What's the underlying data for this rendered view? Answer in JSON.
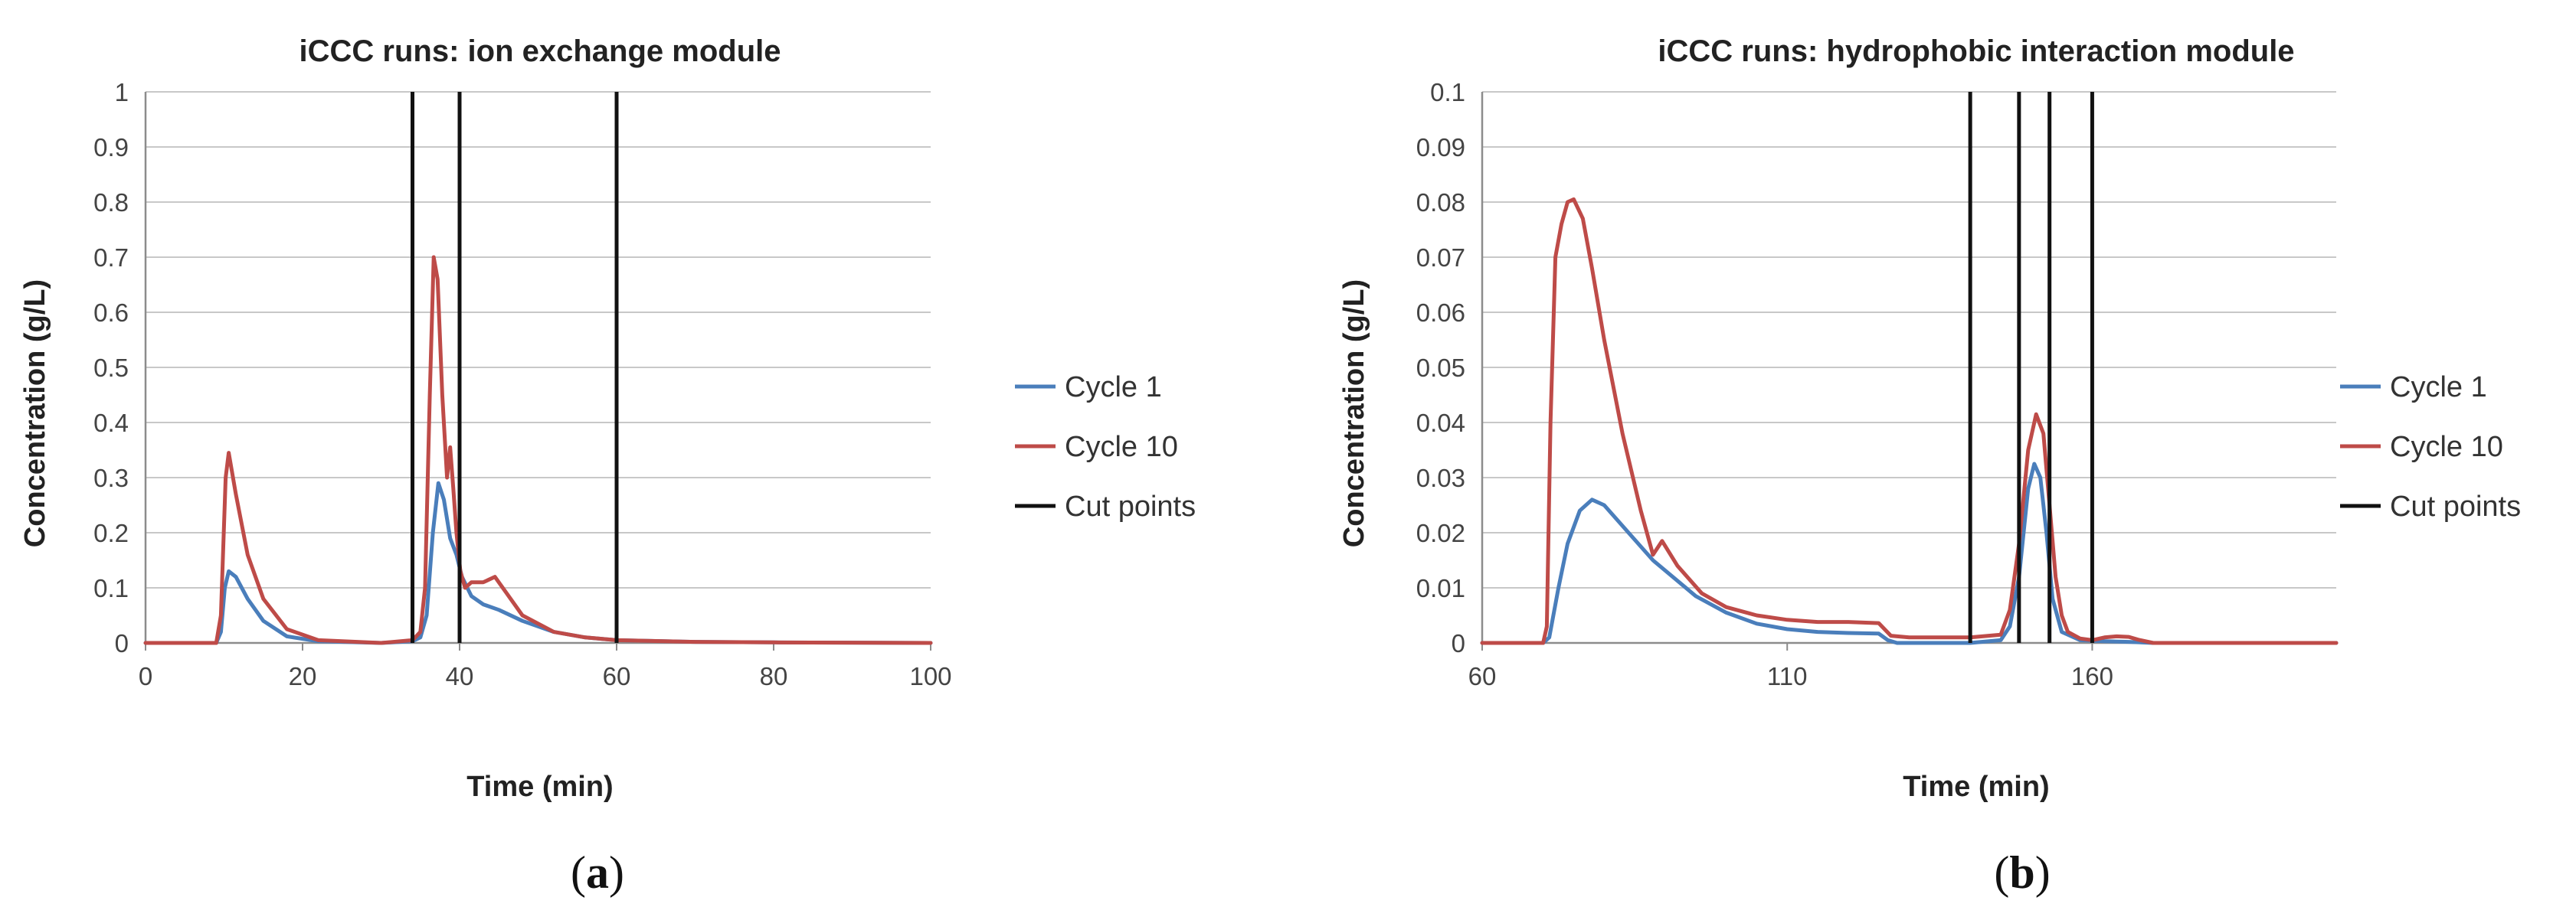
{
  "panel_labels": [
    {
      "open": "(",
      "letter": "a",
      "close": ")"
    },
    {
      "open": "(",
      "letter": "b",
      "close": ")"
    }
  ],
  "chart_data": [
    {
      "type": "line",
      "title": "iCCC runs: ion exchange module",
      "xlabel": "Time (min)",
      "ylabel": "Concentration (g/L)",
      "xlim": [
        0,
        100
      ],
      "ylim": [
        0,
        1
      ],
      "xticks": [
        0,
        20,
        40,
        60,
        80,
        100
      ],
      "xtick_labels": [
        "0",
        "20",
        "40",
        "60",
        "80",
        "100"
      ],
      "yticks": [
        0,
        0.1,
        0.2,
        0.3,
        0.4,
        0.5,
        0.6,
        0.7,
        0.8,
        0.9,
        1
      ],
      "ytick_labels": [
        "0",
        "0.1",
        "0.2",
        "0.3",
        "0.4",
        "0.5",
        "0.6",
        "0.7",
        "0.8",
        "0.9",
        "1"
      ],
      "grid": true,
      "legend_position": "right",
      "series": [
        {
          "name": "Cycle 1",
          "color": "#4a7ebb",
          "x": [
            0,
            9,
            9.6,
            10.1,
            10.6,
            11.5,
            13,
            15,
            18,
            22,
            30,
            34,
            35,
            35.8,
            36.6,
            37.3,
            38,
            38.8,
            39.6,
            40.3,
            41.5,
            43,
            45,
            48,
            52,
            56,
            60,
            70,
            80,
            100
          ],
          "y": [
            0,
            0,
            0.02,
            0.1,
            0.13,
            0.12,
            0.08,
            0.04,
            0.012,
            0.003,
            0,
            0.003,
            0.01,
            0.05,
            0.2,
            0.29,
            0.26,
            0.19,
            0.16,
            0.12,
            0.085,
            0.07,
            0.06,
            0.04,
            0.02,
            0.01,
            0.005,
            0.002,
            0.001,
            0
          ]
        },
        {
          "name": "Cycle 10",
          "color": "#be4b48",
          "x": [
            0,
            9,
            9.6,
            10.2,
            10.6,
            11.5,
            13,
            15,
            18,
            22,
            30,
            34,
            35,
            35.6,
            36.2,
            36.7,
            37.2,
            37.8,
            38.4,
            38.8,
            39.2,
            39.6,
            40.1,
            40.7,
            41.5,
            43,
            44.5,
            46,
            48,
            52,
            56,
            60,
            70,
            80,
            100
          ],
          "y": [
            0,
            0,
            0.05,
            0.3,
            0.345,
            0.27,
            0.16,
            0.08,
            0.025,
            0.005,
            0,
            0.005,
            0.02,
            0.1,
            0.45,
            0.7,
            0.66,
            0.45,
            0.3,
            0.355,
            0.28,
            0.2,
            0.13,
            0.1,
            0.11,
            0.11,
            0.12,
            0.09,
            0.05,
            0.02,
            0.01,
            0.005,
            0.002,
            0.001,
            0
          ]
        }
      ],
      "cut_points": {
        "name": "Cut points",
        "color": "#111111",
        "x": [
          34,
          40,
          60
        ]
      }
    },
    {
      "type": "line",
      "title": "iCCC runs: hydrophobic interaction module",
      "xlabel": "Time (min)",
      "ylabel": "Concentration (g/L)",
      "xlim": [
        60,
        200
      ],
      "ylim": [
        0,
        0.1
      ],
      "xticks": [
        60,
        110,
        160
      ],
      "xtick_labels": [
        "60",
        "110",
        "160"
      ],
      "yticks": [
        0,
        0.01,
        0.02,
        0.03,
        0.04,
        0.05,
        0.06,
        0.07,
        0.08,
        0.09,
        0.1
      ],
      "ytick_labels": [
        "0",
        "0.01",
        "0.02",
        "0.03",
        "0.04",
        "0.05",
        "0.06",
        "0.07",
        "0.08",
        "0.09",
        "0.1"
      ],
      "grid": true,
      "legend_position": "right",
      "series": [
        {
          "name": "Cycle 1",
          "color": "#4a7ebb",
          "x": [
            60,
            70,
            71,
            72.5,
            74,
            76,
            78,
            80,
            84,
            88,
            95,
            100,
            105,
            110,
            115,
            120,
            125,
            126.5,
            128,
            140,
            145,
            146.5,
            148,
            149.5,
            150.5,
            151.5,
            152.5,
            153.5,
            155,
            158,
            162,
            166,
            170,
            200
          ],
          "y": [
            0,
            0,
            0.001,
            0.01,
            0.018,
            0.024,
            0.026,
            0.025,
            0.02,
            0.015,
            0.0085,
            0.0055,
            0.0035,
            0.0025,
            0.002,
            0.0018,
            0.0017,
            0.0005,
            0,
            0,
            0.0005,
            0.003,
            0.012,
            0.028,
            0.0325,
            0.03,
            0.02,
            0.008,
            0.002,
            0.0005,
            0.0003,
            0.0002,
            0,
            0
          ]
        },
        {
          "name": "Cycle 10",
          "color": "#be4b48",
          "x": [
            60,
            70,
            70.6,
            71.2,
            72,
            73,
            74,
            75,
            76.5,
            78,
            80,
            83,
            86,
            88,
            89.5,
            92,
            96,
            100,
            105,
            110,
            115,
            120,
            125,
            127,
            130,
            140,
            145,
            146.5,
            148,
            149.5,
            150.8,
            152,
            153,
            154,
            155,
            156,
            158,
            160,
            162,
            164,
            166,
            167.5,
            170,
            200
          ],
          "y": [
            0,
            0,
            0.003,
            0.04,
            0.07,
            0.076,
            0.08,
            0.0805,
            0.077,
            0.068,
            0.055,
            0.038,
            0.024,
            0.016,
            0.0185,
            0.014,
            0.009,
            0.0065,
            0.005,
            0.0042,
            0.0038,
            0.0038,
            0.0036,
            0.0013,
            0.001,
            0.001,
            0.0015,
            0.006,
            0.018,
            0.035,
            0.0415,
            0.038,
            0.025,
            0.012,
            0.005,
            0.002,
            0.0008,
            0.0005,
            0.001,
            0.0012,
            0.0011,
            0.0006,
            0,
            0
          ]
        }
      ],
      "cut_points": {
        "name": "Cut points",
        "color": "#111111",
        "x": [
          140,
          148,
          153,
          160
        ]
      }
    }
  ]
}
